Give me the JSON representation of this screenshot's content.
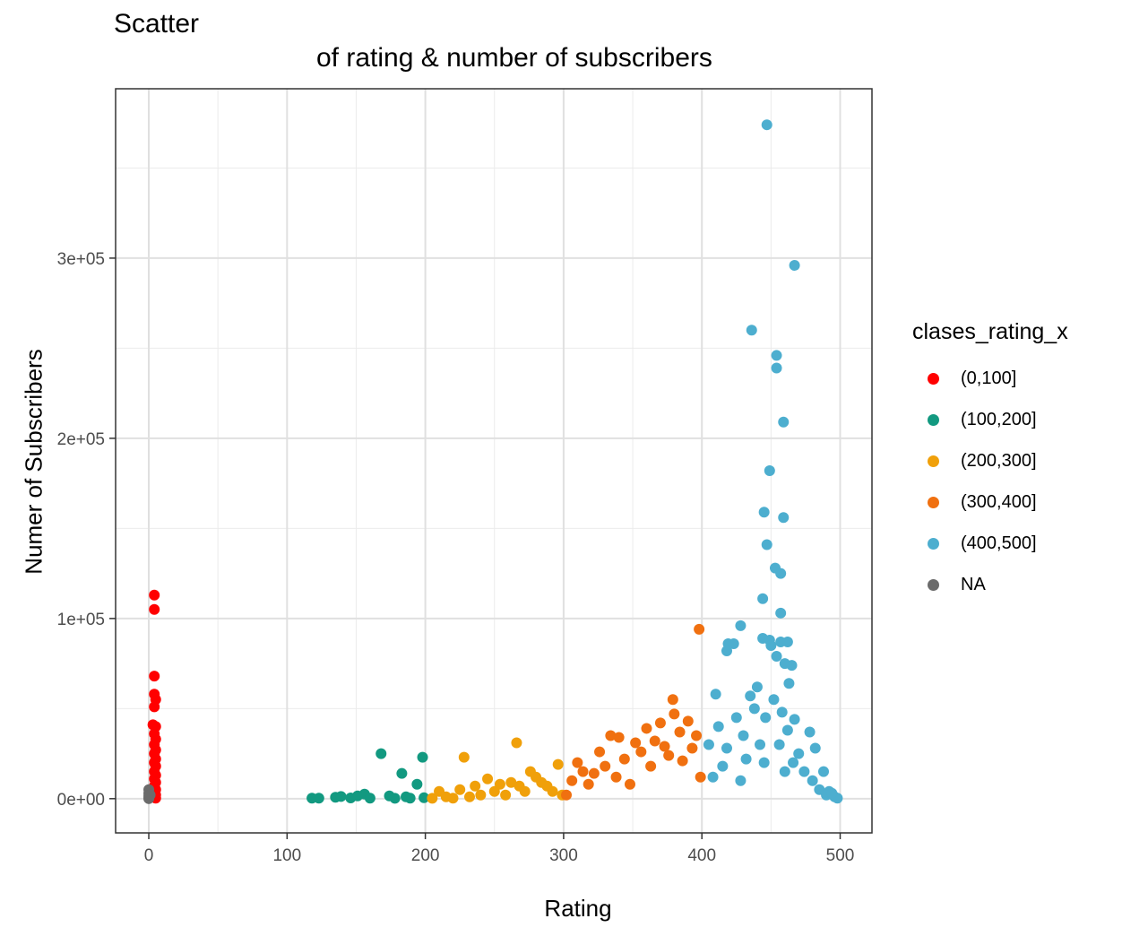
{
  "chart_data": {
    "type": "scatter",
    "title": "Scatter",
    "subtitle": "of rating & number of subscribers",
    "xlabel": "Rating",
    "ylabel": "Numer of Subscribers",
    "xlim": [
      -24,
      523
    ],
    "ylim": [
      -19000,
      394000
    ],
    "x_ticks": [
      0,
      100,
      200,
      300,
      400,
      500
    ],
    "x_tick_labels": [
      "0",
      "100",
      "200",
      "300",
      "400",
      "500"
    ],
    "y_ticks": [
      0,
      100000,
      200000,
      300000
    ],
    "y_tick_labels": [
      "0e+00",
      "1e+05",
      "2e+05",
      "3e+05"
    ],
    "grid": true,
    "legend_position": "right",
    "legend_title": "clases_rating_x",
    "series": [
      {
        "name": "(0,100]",
        "color": "#FF0000",
        "points": [
          [
            4,
            113000
          ],
          [
            4,
            105000
          ],
          [
            4,
            68000
          ],
          [
            4,
            58000
          ],
          [
            5,
            55000
          ],
          [
            4,
            51000
          ],
          [
            3,
            41000
          ],
          [
            5,
            40000
          ],
          [
            4,
            36000
          ],
          [
            5,
            33000
          ],
          [
            4,
            30000
          ],
          [
            5,
            27000
          ],
          [
            4,
            25000
          ],
          [
            5,
            22000
          ],
          [
            4,
            20000
          ],
          [
            5,
            18000
          ],
          [
            4,
            15000
          ],
          [
            5,
            13000
          ],
          [
            4,
            11000
          ],
          [
            5,
            9000
          ],
          [
            4,
            7000
          ],
          [
            5,
            5000
          ],
          [
            4,
            3500
          ],
          [
            5,
            2000
          ],
          [
            4,
            1000
          ],
          [
            5,
            300
          ]
        ]
      },
      {
        "name": "(100,200]",
        "color": "#129980",
        "points": [
          [
            118,
            300
          ],
          [
            123,
            300
          ],
          [
            135,
            800
          ],
          [
            139,
            1200
          ],
          [
            146,
            400
          ],
          [
            151,
            1500
          ],
          [
            156,
            2500
          ],
          [
            160,
            300
          ],
          [
            168,
            25000
          ],
          [
            174,
            1500
          ],
          [
            178,
            200
          ],
          [
            183,
            14000
          ],
          [
            186,
            1000
          ],
          [
            189,
            300
          ],
          [
            194,
            8000
          ],
          [
            198,
            23000
          ],
          [
            199,
            500
          ]
        ]
      },
      {
        "name": "(200,300]",
        "color": "#F0A00A",
        "points": [
          [
            205,
            200
          ],
          [
            210,
            4000
          ],
          [
            215,
            1000
          ],
          [
            220,
            300
          ],
          [
            225,
            5000
          ],
          [
            228,
            23000
          ],
          [
            232,
            1000
          ],
          [
            236,
            7000
          ],
          [
            240,
            2000
          ],
          [
            245,
            11000
          ],
          [
            250,
            4000
          ],
          [
            254,
            8000
          ],
          [
            258,
            2000
          ],
          [
            262,
            9000
          ],
          [
            266,
            31000
          ],
          [
            268,
            7000
          ],
          [
            272,
            4000
          ],
          [
            276,
            15000
          ],
          [
            280,
            12000
          ],
          [
            284,
            9000
          ],
          [
            288,
            7000
          ],
          [
            292,
            4000
          ],
          [
            296,
            19000
          ],
          [
            299,
            2000
          ]
        ]
      },
      {
        "name": "(300,400]",
        "color": "#F07010",
        "points": [
          [
            302,
            2000
          ],
          [
            306,
            10000
          ],
          [
            310,
            20000
          ],
          [
            314,
            15000
          ],
          [
            318,
            8000
          ],
          [
            322,
            14000
          ],
          [
            326,
            26000
          ],
          [
            330,
            18000
          ],
          [
            334,
            35000
          ],
          [
            338,
            12000
          ],
          [
            340,
            34000
          ],
          [
            344,
            22000
          ],
          [
            348,
            8000
          ],
          [
            352,
            31000
          ],
          [
            356,
            26000
          ],
          [
            360,
            39000
          ],
          [
            363,
            18000
          ],
          [
            366,
            32000
          ],
          [
            370,
            42000
          ],
          [
            373,
            29000
          ],
          [
            376,
            24000
          ],
          [
            379,
            55000
          ],
          [
            380,
            47000
          ],
          [
            384,
            37000
          ],
          [
            386,
            21000
          ],
          [
            390,
            43000
          ],
          [
            393,
            28000
          ],
          [
            396,
            35000
          ],
          [
            398,
            94000
          ],
          [
            399,
            12000
          ]
        ]
      },
      {
        "name": "(400,500]",
        "color": "#4DAECF",
        "points": [
          [
            447,
            374000
          ],
          [
            467,
            296000
          ],
          [
            436,
            260000
          ],
          [
            454,
            246000
          ],
          [
            454,
            239000
          ],
          [
            459,
            209000
          ],
          [
            449,
            182000
          ],
          [
            459,
            156000
          ],
          [
            445,
            159000
          ],
          [
            447,
            141000
          ],
          [
            453,
            128000
          ],
          [
            457,
            125000
          ],
          [
            444,
            111000
          ],
          [
            457,
            103000
          ],
          [
            428,
            96000
          ],
          [
            444,
            89000
          ],
          [
            449,
            88000
          ],
          [
            457,
            87000
          ],
          [
            462,
            87000
          ],
          [
            419,
            86000
          ],
          [
            423,
            86000
          ],
          [
            418,
            82000
          ],
          [
            450,
            85000
          ],
          [
            454,
            79000
          ],
          [
            460,
            75000
          ],
          [
            465,
            74000
          ],
          [
            463,
            64000
          ],
          [
            410,
            58000
          ],
          [
            440,
            62000
          ],
          [
            435,
            57000
          ],
          [
            458,
            48000
          ],
          [
            467,
            44000
          ],
          [
            478,
            37000
          ],
          [
            482,
            28000
          ],
          [
            488,
            15000
          ],
          [
            492,
            4000
          ],
          [
            496,
            1000
          ],
          [
            498,
            300
          ],
          [
            405,
            30000
          ],
          [
            412,
            40000
          ],
          [
            418,
            28000
          ],
          [
            425,
            45000
          ],
          [
            430,
            35000
          ],
          [
            432,
            22000
          ],
          [
            438,
            50000
          ],
          [
            442,
            30000
          ],
          [
            446,
            45000
          ],
          [
            452,
            55000
          ],
          [
            456,
            30000
          ],
          [
            462,
            38000
          ],
          [
            466,
            20000
          ],
          [
            470,
            25000
          ],
          [
            474,
            15000
          ],
          [
            480,
            10000
          ],
          [
            485,
            5000
          ],
          [
            490,
            2000
          ],
          [
            494,
            3000
          ],
          [
            408,
            12000
          ],
          [
            415,
            18000
          ],
          [
            428,
            10000
          ],
          [
            445,
            20000
          ],
          [
            460,
            15000
          ]
        ]
      },
      {
        "name": "NA",
        "color": "#6B6B6B",
        "points": [
          [
            0,
            5000
          ],
          [
            0,
            3000
          ],
          [
            0,
            1500
          ],
          [
            0,
            500
          ],
          [
            0,
            0
          ],
          [
            1,
            2000
          ]
        ]
      }
    ]
  }
}
